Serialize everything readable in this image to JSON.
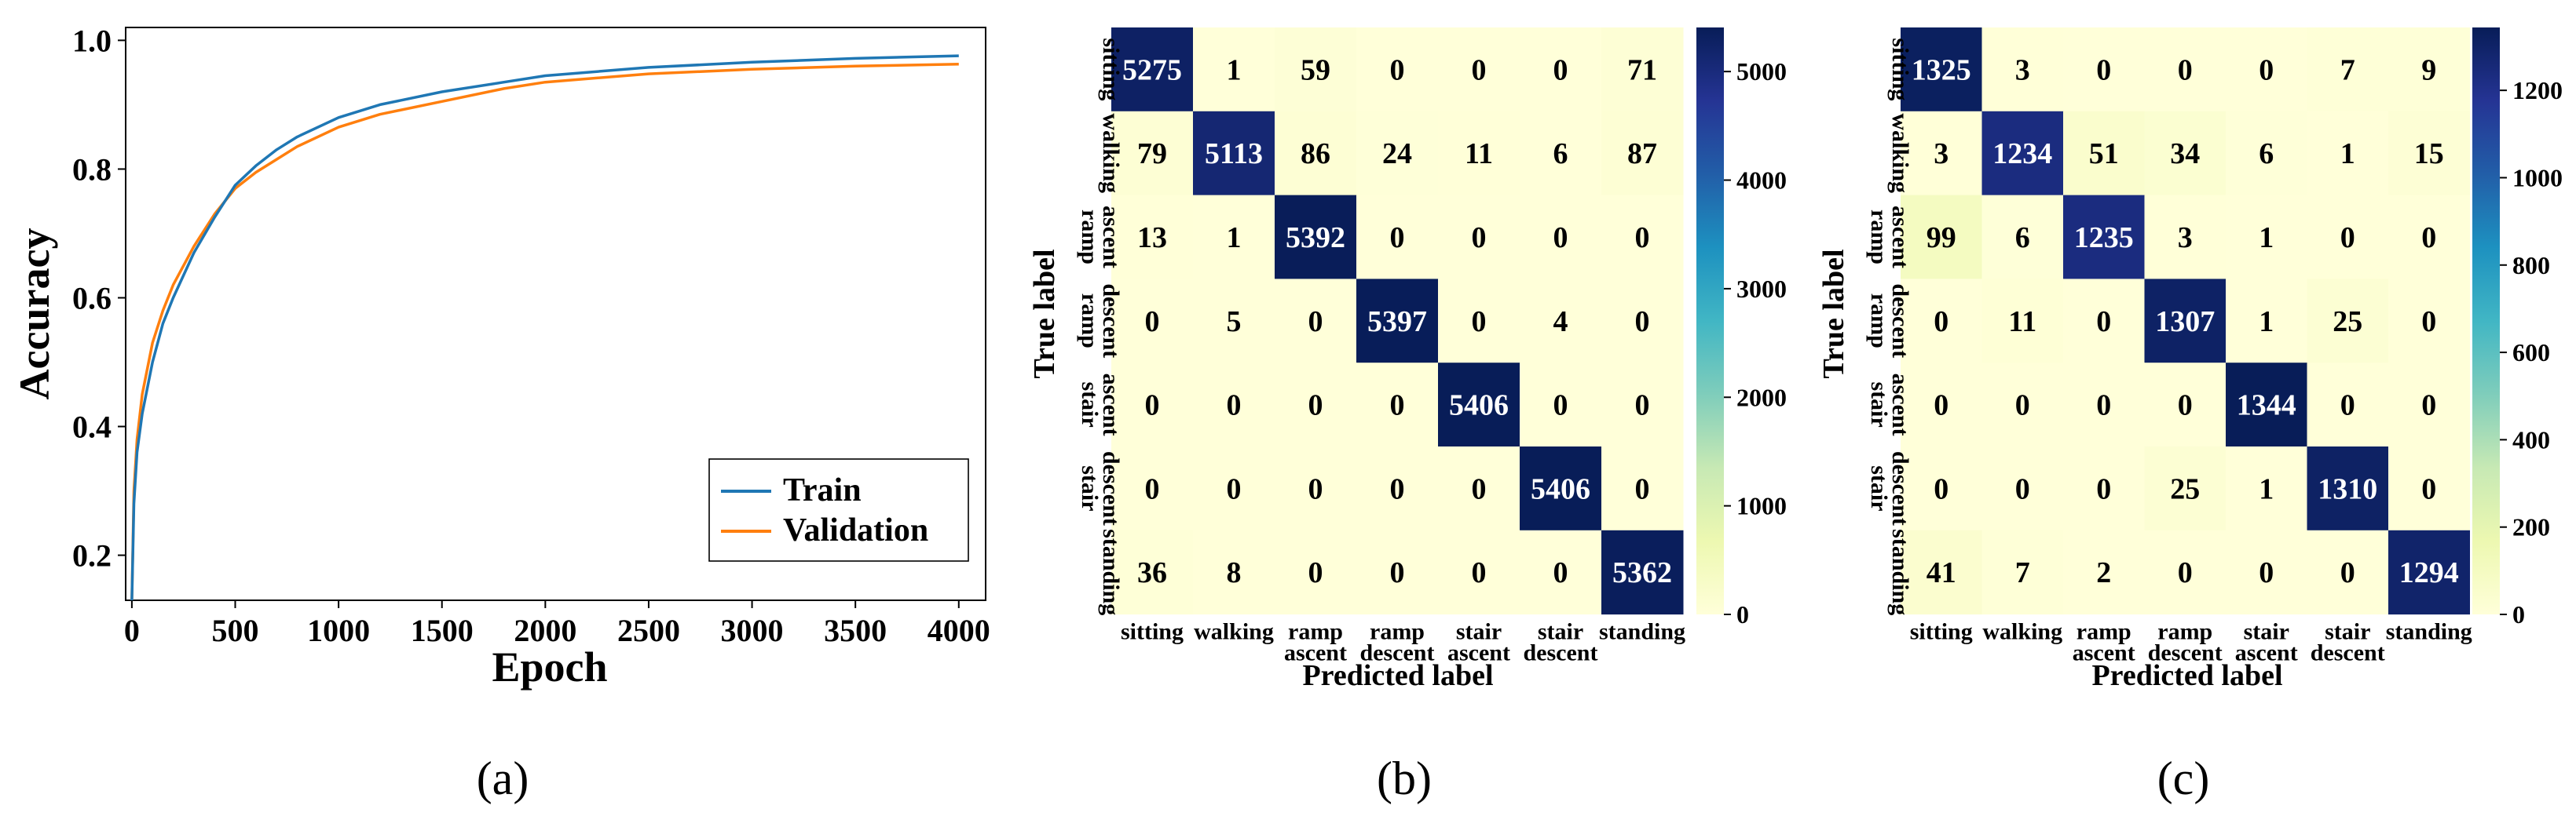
{
  "chart_data": [
    {
      "type": "line",
      "panel_label": "(a)",
      "title": "",
      "xlabel": "Epoch",
      "ylabel": "Accuracy",
      "xlim": [
        -30,
        4130
      ],
      "ylim": [
        0.13,
        1.02
      ],
      "xticks": [
        0,
        500,
        1000,
        1500,
        2000,
        2500,
        3000,
        3500,
        4000
      ],
      "xtick_labels": [
        "0",
        "500",
        "1000",
        "1500",
        "2000",
        "2500",
        "3000",
        "3500",
        "4000"
      ],
      "yticks": [
        0.2,
        0.4,
        0.6,
        0.8,
        1.0
      ],
      "ytick_labels": [
        "0.2",
        "0.4",
        "0.6",
        "0.8",
        "1.0"
      ],
      "legend_position": "bottom-right",
      "series": [
        {
          "name": "Train",
          "color": "#1f77b4",
          "x": [
            0,
            10,
            25,
            50,
            100,
            150,
            200,
            300,
            400,
            500,
            600,
            700,
            800,
            1000,
            1200,
            1500,
            1800,
            2000,
            2500,
            3000,
            3500,
            4000
          ],
          "y": [
            0.13,
            0.28,
            0.36,
            0.42,
            0.5,
            0.56,
            0.6,
            0.67,
            0.725,
            0.775,
            0.805,
            0.83,
            0.85,
            0.88,
            0.9,
            0.92,
            0.935,
            0.945,
            0.958,
            0.966,
            0.972,
            0.976
          ]
        },
        {
          "name": "Validation",
          "color": "#ff7f0e",
          "x": [
            0,
            10,
            25,
            50,
            100,
            150,
            200,
            300,
            400,
            500,
            600,
            700,
            800,
            1000,
            1200,
            1500,
            1800,
            2000,
            2500,
            3000,
            3500,
            4000
          ],
          "y": [
            0.13,
            0.3,
            0.38,
            0.45,
            0.53,
            0.58,
            0.62,
            0.68,
            0.73,
            0.77,
            0.795,
            0.815,
            0.835,
            0.865,
            0.885,
            0.905,
            0.925,
            0.935,
            0.948,
            0.955,
            0.96,
            0.963
          ]
        }
      ]
    },
    {
      "type": "heatmap",
      "panel_label": "(b)",
      "xlabel": "Predicted label",
      "ylabel": "True label",
      "labels": [
        "sitting",
        "walking",
        "ramp ascent",
        "ramp descent",
        "stair ascent",
        "stair descent",
        "standing"
      ],
      "x_tick_labels": [
        [
          "sitting"
        ],
        [
          "walking"
        ],
        [
          "ramp",
          "ascent"
        ],
        [
          "ramp",
          "descent"
        ],
        [
          "stair",
          "ascent"
        ],
        [
          "stair",
          "descent"
        ],
        [
          "standing"
        ]
      ],
      "y_tick_labels": [
        [
          "sitting"
        ],
        [
          "walking"
        ],
        [
          "ramp",
          "ascent"
        ],
        [
          "ramp",
          "descent"
        ],
        [
          "stair",
          "ascent"
        ],
        [
          "stair",
          "descent"
        ],
        [
          "standing"
        ]
      ],
      "matrix": [
        [
          5275,
          1,
          59,
          0,
          0,
          0,
          71
        ],
        [
          79,
          5113,
          86,
          24,
          11,
          6,
          87
        ],
        [
          13,
          1,
          5392,
          0,
          0,
          0,
          0
        ],
        [
          0,
          5,
          0,
          5397,
          0,
          4,
          0
        ],
        [
          0,
          0,
          0,
          0,
          5406,
          0,
          0
        ],
        [
          0,
          0,
          0,
          0,
          0,
          5406,
          0
        ],
        [
          36,
          8,
          0,
          0,
          0,
          0,
          5362
        ]
      ],
      "colorbar_range": [
        0,
        5406
      ],
      "colorbar_ticks": [
        0,
        1000,
        2000,
        3000,
        4000,
        5000
      ],
      "colorbar_tick_labels": [
        "0",
        "1000",
        "2000",
        "3000",
        "4000",
        "5000"
      ],
      "colormap": "YlGnBu"
    },
    {
      "type": "heatmap",
      "panel_label": "(c)",
      "xlabel": "Predicted label",
      "ylabel": "True label",
      "labels": [
        "sitting",
        "walking",
        "ramp ascent",
        "ramp descent",
        "stair ascent",
        "stair descent",
        "standing"
      ],
      "x_tick_labels": [
        [
          "sitting"
        ],
        [
          "walking"
        ],
        [
          "ramp",
          "ascent"
        ],
        [
          "ramp",
          "descent"
        ],
        [
          "stair",
          "ascent"
        ],
        [
          "stair",
          "descent"
        ],
        [
          "standing"
        ]
      ],
      "y_tick_labels": [
        [
          "sitting"
        ],
        [
          "walking"
        ],
        [
          "ramp",
          "ascent"
        ],
        [
          "ramp",
          "descent"
        ],
        [
          "stair",
          "ascent"
        ],
        [
          "stair",
          "descent"
        ],
        [
          "standing"
        ]
      ],
      "matrix": [
        [
          1325,
          3,
          0,
          0,
          0,
          7,
          9
        ],
        [
          3,
          1234,
          51,
          34,
          6,
          1,
          15
        ],
        [
          99,
          6,
          1235,
          3,
          1,
          0,
          0
        ],
        [
          0,
          11,
          0,
          1307,
          1,
          25,
          0
        ],
        [
          0,
          0,
          0,
          0,
          1344,
          0,
          0
        ],
        [
          0,
          0,
          0,
          25,
          1,
          1310,
          0
        ],
        [
          41,
          7,
          2,
          0,
          0,
          0,
          1294
        ]
      ],
      "colorbar_range": [
        0,
        1344
      ],
      "colorbar_ticks": [
        0,
        200,
        400,
        600,
        800,
        1000,
        1200
      ],
      "colorbar_tick_labels": [
        "0",
        "200",
        "400",
        "600",
        "800",
        "1000",
        "1200"
      ],
      "colormap": "YlGnBu"
    }
  ]
}
